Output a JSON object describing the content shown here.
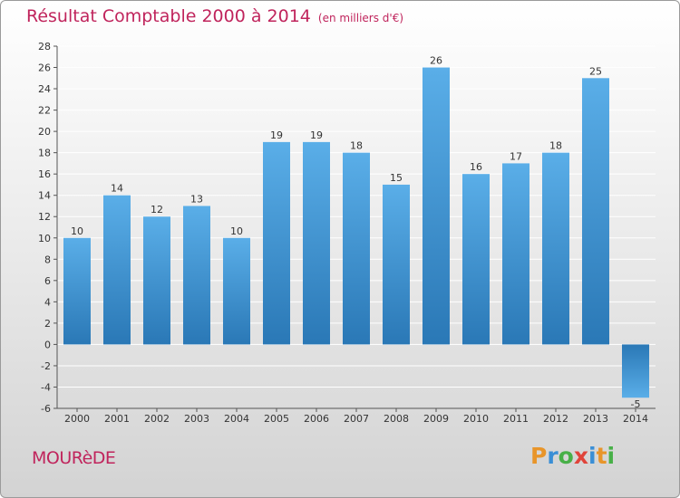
{
  "header": {
    "title": "Résultat Comptable 2000 à 2014",
    "subtitle": "(en milliers d'€)"
  },
  "footer": {
    "place": "MOURèDE",
    "brand_letters": [
      "P",
      "r",
      "o",
      "x",
      "i",
      "t",
      "i"
    ]
  },
  "colors": {
    "title": "#c0245c",
    "bar_top": "#5aaee8",
    "bar_bottom": "#2a78b6",
    "grid": "#ffffff",
    "brand": [
      "#e8952a",
      "#3a8fd6",
      "#48b048",
      "#e0443a",
      "#3a8fd6",
      "#e8952a",
      "#48b048"
    ]
  },
  "chart_data": {
    "type": "bar",
    "title": "Résultat Comptable 2000 à 2014",
    "subtitle": "(en milliers d'€)",
    "categories": [
      "2000",
      "2001",
      "2002",
      "2003",
      "2004",
      "2005",
      "2006",
      "2007",
      "2008",
      "2009",
      "2010",
      "2011",
      "2012",
      "2013",
      "2014"
    ],
    "values": [
      10,
      14,
      12,
      13,
      10,
      19,
      19,
      18,
      15,
      26,
      16,
      17,
      18,
      25,
      -5
    ],
    "ylim": [
      -6,
      28
    ],
    "yticks": [
      -6,
      -4,
      -2,
      0,
      2,
      4,
      6,
      8,
      10,
      12,
      14,
      16,
      18,
      20,
      22,
      24,
      26,
      28
    ],
    "grid": true
  }
}
